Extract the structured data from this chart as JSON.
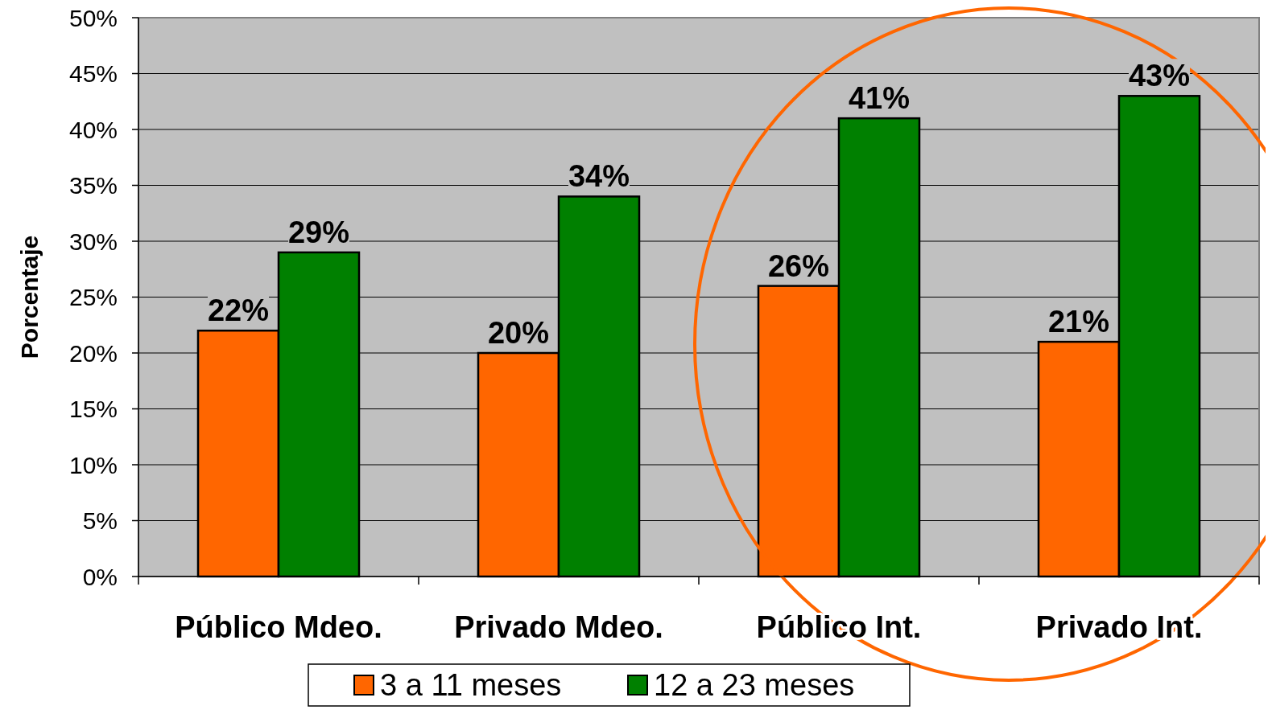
{
  "chart_data": {
    "type": "bar",
    "ylabel": "Porcentaje",
    "categories": [
      "Público Mdeo.",
      "Privado Mdeo.",
      "Público Int.",
      "Privado Int."
    ],
    "series": [
      {
        "name": "3 a 11 meses",
        "color": "#ff6600",
        "values": [
          22,
          20,
          26,
          21
        ],
        "value_labels": [
          "22%",
          "20%",
          "26%",
          "21%"
        ]
      },
      {
        "name": "12 a 23 meses",
        "color": "#008000",
        "values": [
          29,
          34,
          41,
          43
        ],
        "value_labels": [
          "29%",
          "34%",
          "41%",
          "43%"
        ]
      }
    ],
    "ylim": [
      0,
      50
    ],
    "yticks": [
      {
        "value": 0,
        "label": "0%"
      },
      {
        "value": 5,
        "label": "5%"
      },
      {
        "value": 10,
        "label": "10%"
      },
      {
        "value": 15,
        "label": "15%"
      },
      {
        "value": 20,
        "label": "20%"
      },
      {
        "value": 25,
        "label": "25%"
      },
      {
        "value": 30,
        "label": "30%"
      },
      {
        "value": 35,
        "label": "35%"
      },
      {
        "value": 40,
        "label": "40%"
      },
      {
        "value": 45,
        "label": "45%"
      },
      {
        "value": 50,
        "label": "50%"
      }
    ],
    "grid": "y",
    "legend": "bottom"
  }
}
